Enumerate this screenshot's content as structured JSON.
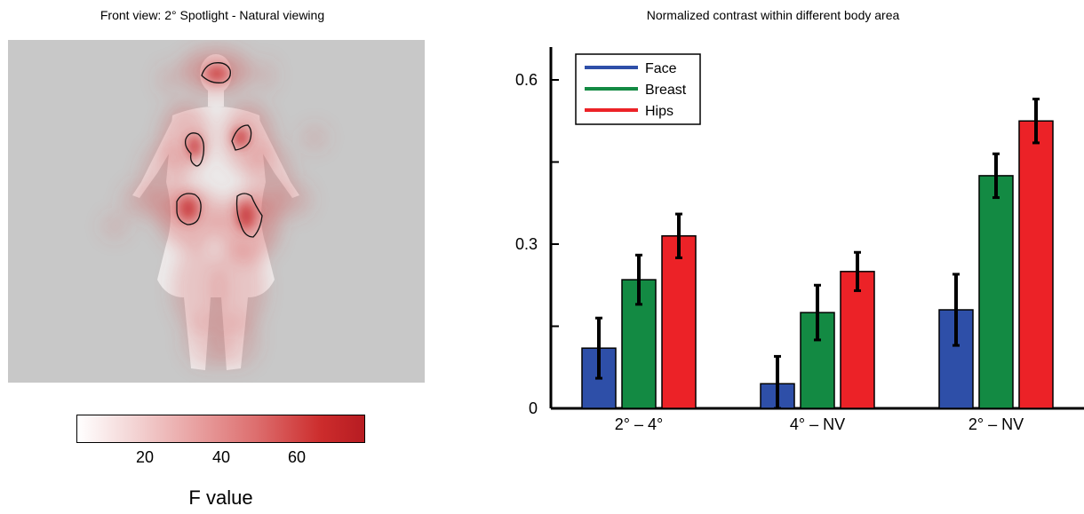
{
  "left_panel": {
    "title": "Front view: 2° Spotlight - Natural viewing",
    "colorbar": {
      "label": "F value",
      "ticks": [
        "20",
        "40",
        "60"
      ],
      "tick_values": [
        20,
        40,
        60
      ],
      "range": [
        0,
        78
      ],
      "colors": [
        "#ffffff",
        "#b71c22"
      ]
    }
  },
  "chart_data": {
    "type": "bar",
    "title": "Normalized contrast within different body area",
    "xlabel": "",
    "ylabel": "",
    "categories": [
      "2° – 4°",
      "4° – NV",
      "2° – NV"
    ],
    "ylim": [
      0,
      0.66
    ],
    "yticks": [
      0,
      0.3,
      0.6
    ],
    "ytick_labels": [
      "0",
      "0.3",
      "0.6"
    ],
    "legend_position": "top-left",
    "grid": false,
    "series": [
      {
        "name": "Face",
        "color": "#2e4fa8",
        "values": [
          0.11,
          0.045,
          0.18
        ],
        "errors": [
          0.055,
          0.05,
          0.065
        ]
      },
      {
        "name": "Breast",
        "color": "#138a43",
        "values": [
          0.235,
          0.175,
          0.425
        ],
        "errors": [
          0.045,
          0.05,
          0.04
        ]
      },
      {
        "name": "Hips",
        "color": "#ec2227",
        "values": [
          0.315,
          0.25,
          0.525
        ],
        "errors": [
          0.04,
          0.035,
          0.04
        ]
      }
    ]
  }
}
